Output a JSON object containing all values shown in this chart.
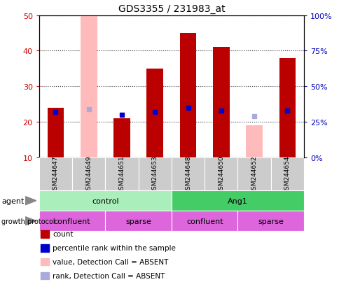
{
  "title": "GDS3355 / 231983_at",
  "samples": [
    "GSM244647",
    "GSM244649",
    "GSM244651",
    "GSM244653",
    "GSM244648",
    "GSM244650",
    "GSM244652",
    "GSM244654"
  ],
  "bar_values": [
    24,
    null,
    21,
    35,
    45,
    41,
    null,
    38
  ],
  "bar_absent_values": [
    null,
    50,
    null,
    null,
    null,
    null,
    19,
    null
  ],
  "rank_values": [
    32,
    null,
    30,
    32,
    35,
    33,
    null,
    33
  ],
  "rank_absent_values": [
    null,
    34,
    null,
    null,
    null,
    null,
    29,
    null
  ],
  "bar_color": "#bb0000",
  "bar_absent_color": "#ffbbbb",
  "rank_color": "#0000cc",
  "rank_absent_color": "#aaaadd",
  "ylim_left": [
    10,
    50
  ],
  "ylim_right": [
    0,
    100
  ],
  "yticks_left": [
    10,
    20,
    30,
    40,
    50
  ],
  "yticks_right": [
    0,
    25,
    50,
    75,
    100
  ],
  "ytick_labels_right": [
    "0%",
    "25%",
    "50%",
    "75%",
    "100%"
  ],
  "agent_groups": [
    {
      "label": "control",
      "start": 0,
      "end": 4,
      "color": "#aaeebb"
    },
    {
      "label": "Ang1",
      "start": 4,
      "end": 8,
      "color": "#44cc66"
    }
  ],
  "growth_labels": [
    "confluent",
    "sparse",
    "confluent",
    "sparse"
  ],
  "growth_ranges": [
    [
      0,
      2
    ],
    [
      2,
      4
    ],
    [
      4,
      6
    ],
    [
      6,
      8
    ]
  ],
  "growth_color": "#dd66dd",
  "legend_items": [
    {
      "label": "count",
      "color": "#bb0000"
    },
    {
      "label": "percentile rank within the sample",
      "color": "#0000cc"
    },
    {
      "label": "value, Detection Call = ABSENT",
      "color": "#ffbbbb"
    },
    {
      "label": "rank, Detection Call = ABSENT",
      "color": "#aaaadd"
    }
  ],
  "ylabel_left_color": "#cc0000",
  "ylabel_right_color": "#0000bb",
  "title_fontsize": 10,
  "ytick_fontsize": 8,
  "sample_fontsize": 6.5,
  "row_fontsize": 8,
  "legend_fontsize": 7.5
}
